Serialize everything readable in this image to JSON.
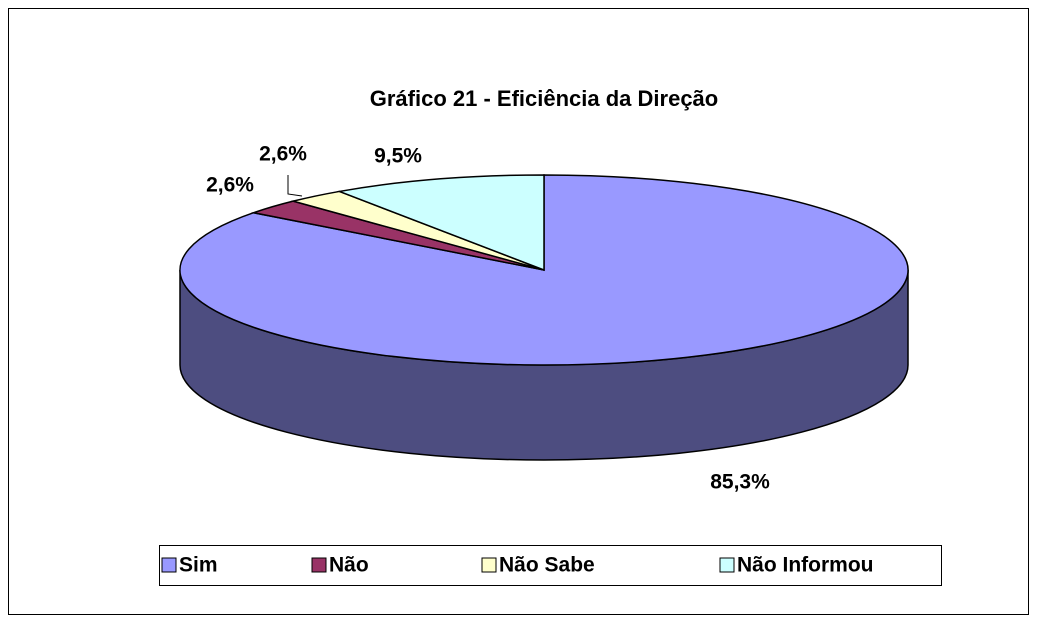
{
  "chart_data": {
    "type": "pie3d",
    "title": "Gráfico 21 - Eficiência da Direção",
    "categories": [
      "Sim",
      "Não",
      "Não Sabe",
      "Não Informou"
    ],
    "values": [
      85.3,
      2.6,
      2.6,
      9.5
    ],
    "value_labels": [
      "85,3%",
      "2,6%",
      "2,6%",
      "9,5%"
    ],
    "colors": [
      "#9999ff",
      "#993366",
      "#ffffcc",
      "#ccffff"
    ],
    "legend": "bottom"
  }
}
